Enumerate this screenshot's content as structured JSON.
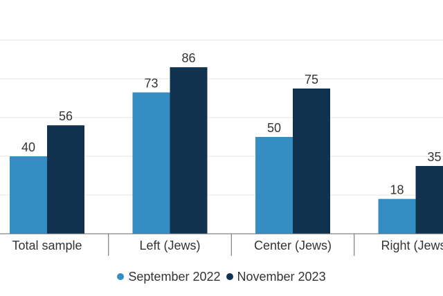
{
  "chart_data": {
    "type": "bar",
    "categories": [
      "Total sample",
      "Left (Jews)",
      "Center (Jews)",
      "Right (Jews)"
    ],
    "series": [
      {
        "name": "September 2022",
        "values": [
          40,
          73,
          50,
          18
        ],
        "color": "#348ec4"
      },
      {
        "name": "November 2023",
        "values": [
          56,
          86,
          75,
          35
        ],
        "color": "#10324f"
      }
    ],
    "ylim": [
      0,
      100
    ],
    "grid": true,
    "legend_position": "bottom-center"
  }
}
